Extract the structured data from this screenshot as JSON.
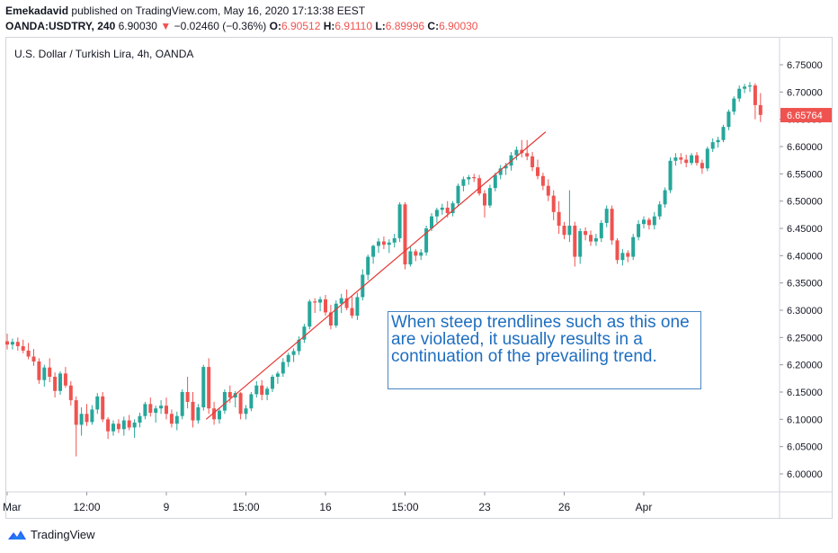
{
  "header": {
    "author": "Emekadavid",
    "published_text": "published on TradingView.com, May 16, 2020 17:13:38 EEST",
    "symbol": "OANDA:USDTRY, 240",
    "last": "6.90030",
    "change_arrow": "▼",
    "change": "−0.02460 (−0.36%)",
    "o_label": "O:",
    "o_value": "6.90512",
    "h_label": "H:",
    "h_value": "6.91110",
    "l_label": "L:",
    "l_value": "6.89996",
    "c_label": "C:",
    "c_value": "6.90030"
  },
  "chart_title": "U.S. Dollar / Turkish Lira, 4h, OANDA",
  "annotation": "When steep trendlines such as this one are violated, it usually results in a continuation of the prevailing trend.",
  "footer": {
    "brand": "TradingView"
  },
  "colors": {
    "up": "#26a69a",
    "down": "#ef5350",
    "trendline": "#e53935",
    "price_tag": "#ef5350",
    "annotation": "#1e6ec0"
  },
  "chart_data": {
    "type": "candlestick",
    "title": "U.S. Dollar / Turkish Lira, 4h, OANDA",
    "ylim": [
      5.96,
      6.8
    ],
    "y_ticks": [
      "6.75000",
      "6.70000",
      "6.65000",
      "6.60000",
      "6.55000",
      "6.50000",
      "6.45000",
      "6.40000",
      "6.35000",
      "6.30000",
      "6.25000",
      "6.20000",
      "6.15000",
      "6.10000",
      "6.05000",
      "6.00000"
    ],
    "y_tick_values": [
      6.75,
      6.7,
      6.65,
      6.6,
      6.55,
      6.5,
      6.45,
      6.4,
      6.35,
      6.3,
      6.25,
      6.2,
      6.15,
      6.1,
      6.05,
      6.0
    ],
    "current_price": 6.65764,
    "current_price_label": "6.65764",
    "x_labels": [
      {
        "text": "Mar",
        "bar": 0
      },
      {
        "text": "12:00",
        "bar": 15
      },
      {
        "text": "9",
        "bar": 30
      },
      {
        "text": "15:00",
        "bar": 45
      },
      {
        "text": "16",
        "bar": 60
      },
      {
        "text": "15:00",
        "bar": 75
      },
      {
        "text": "23",
        "bar": 90
      },
      {
        "text": "26",
        "bar": 105
      },
      {
        "text": "Apr",
        "bar": 120
      }
    ],
    "trendline": {
      "from_bar": 37.5,
      "from_price": 6.1,
      "to_bar": 101.5,
      "to_price": 6.627
    },
    "candles": [
      [
        6.243,
        6.257,
        6.228,
        6.237
      ],
      [
        6.237,
        6.248,
        6.228,
        6.242
      ],
      [
        6.242,
        6.25,
        6.226,
        6.234
      ],
      [
        6.234,
        6.246,
        6.221,
        6.226
      ],
      [
        6.226,
        6.24,
        6.21,
        6.215
      ],
      [
        6.215,
        6.229,
        6.198,
        6.206
      ],
      [
        6.206,
        6.212,
        6.165,
        6.172
      ],
      [
        6.172,
        6.2,
        6.16,
        6.195
      ],
      [
        6.195,
        6.212,
        6.168,
        6.178
      ],
      [
        6.178,
        6.186,
        6.14,
        6.152
      ],
      [
        6.152,
        6.188,
        6.145,
        6.184
      ],
      [
        6.184,
        6.196,
        6.158,
        6.162
      ],
      [
        6.162,
        6.17,
        6.125,
        6.135
      ],
      [
        6.135,
        6.142,
        6.032,
        6.09
      ],
      [
        6.09,
        6.122,
        6.07,
        6.11
      ],
      [
        6.11,
        6.128,
        6.088,
        6.095
      ],
      [
        6.095,
        6.126,
        6.09,
        6.118
      ],
      [
        6.118,
        6.148,
        6.11,
        6.142
      ],
      [
        6.142,
        6.15,
        6.095,
        6.1
      ],
      [
        6.1,
        6.104,
        6.064,
        6.078
      ],
      [
        6.078,
        6.098,
        6.07,
        6.092
      ],
      [
        6.092,
        6.1,
        6.075,
        6.082
      ],
      [
        6.082,
        6.105,
        6.07,
        6.098
      ],
      [
        6.098,
        6.108,
        6.08,
        6.085
      ],
      [
        6.085,
        6.1,
        6.066,
        6.094
      ],
      [
        6.094,
        6.112,
        6.085,
        6.106
      ],
      [
        6.106,
        6.132,
        6.1,
        6.128
      ],
      [
        6.128,
        6.14,
        6.105,
        6.112
      ],
      [
        6.112,
        6.125,
        6.094,
        6.12
      ],
      [
        6.12,
        6.135,
        6.11,
        6.125
      ],
      [
        6.125,
        6.14,
        6.1,
        6.11
      ],
      [
        6.11,
        6.118,
        6.085,
        6.092
      ],
      [
        6.092,
        6.114,
        6.08,
        6.106
      ],
      [
        6.106,
        6.155,
        6.1,
        6.15
      ],
      [
        6.15,
        6.178,
        6.12,
        6.132
      ],
      [
        6.132,
        6.15,
        6.085,
        6.098
      ],
      [
        6.098,
        6.128,
        6.092,
        6.122
      ],
      [
        6.122,
        6.2,
        6.116,
        6.196
      ],
      [
        6.196,
        6.212,
        6.11,
        6.12
      ],
      [
        6.12,
        6.132,
        6.09,
        6.1
      ],
      [
        6.1,
        6.12,
        6.092,
        6.116
      ],
      [
        6.116,
        6.155,
        6.11,
        6.15
      ],
      [
        6.15,
        6.162,
        6.13,
        6.14
      ],
      [
        6.14,
        6.152,
        6.122,
        6.148
      ],
      [
        6.148,
        6.15,
        6.1,
        6.11
      ],
      [
        6.11,
        6.126,
        6.1,
        6.12
      ],
      [
        6.12,
        6.15,
        6.115,
        6.146
      ],
      [
        6.146,
        6.17,
        6.14,
        6.162
      ],
      [
        6.162,
        6.172,
        6.135,
        6.145
      ],
      [
        6.145,
        6.16,
        6.135,
        6.156
      ],
      [
        6.156,
        6.182,
        6.15,
        6.178
      ],
      [
        6.178,
        6.188,
        6.165,
        6.184
      ],
      [
        6.184,
        6.212,
        6.178,
        6.205
      ],
      [
        6.205,
        6.222,
        6.196,
        6.218
      ],
      [
        6.218,
        6.23,
        6.205,
        6.225
      ],
      [
        6.225,
        6.252,
        6.218,
        6.246
      ],
      [
        6.246,
        6.275,
        6.24,
        6.27
      ],
      [
        6.27,
        6.32,
        6.265,
        6.316
      ],
      [
        6.316,
        6.322,
        6.295,
        6.314
      ],
      [
        6.314,
        6.325,
        6.298,
        6.32
      ],
      [
        6.32,
        6.328,
        6.29,
        6.296
      ],
      [
        6.296,
        6.31,
        6.265,
        6.272
      ],
      [
        6.272,
        6.318,
        6.268,
        6.312
      ],
      [
        6.312,
        6.33,
        6.295,
        6.322
      ],
      [
        6.322,
        6.338,
        6.3,
        6.304
      ],
      [
        6.304,
        6.325,
        6.285,
        6.29
      ],
      [
        6.29,
        6.332,
        6.282,
        6.324
      ],
      [
        6.324,
        6.375,
        6.318,
        6.365
      ],
      [
        6.365,
        6.402,
        6.355,
        6.398
      ],
      [
        6.398,
        6.42,
        6.385,
        6.418
      ],
      [
        6.418,
        6.432,
        6.405,
        6.426
      ],
      [
        6.426,
        6.435,
        6.412,
        6.42
      ],
      [
        6.42,
        6.43,
        6.405,
        6.424
      ],
      [
        6.424,
        6.44,
        6.415,
        6.432
      ],
      [
        6.432,
        6.498,
        6.425,
        6.494
      ],
      [
        6.494,
        6.498,
        6.375,
        6.384
      ],
      [
        6.384,
        6.416,
        6.38,
        6.408
      ],
      [
        6.408,
        6.412,
        6.39,
        6.4
      ],
      [
        6.4,
        6.412,
        6.392,
        6.406
      ],
      [
        6.406,
        6.455,
        6.4,
        6.45
      ],
      [
        6.45,
        6.478,
        6.445,
        6.472
      ],
      [
        6.472,
        6.488,
        6.46,
        6.484
      ],
      [
        6.484,
        6.495,
        6.475,
        6.488
      ],
      [
        6.488,
        6.5,
        6.47,
        6.478
      ],
      [
        6.478,
        6.5,
        6.472,
        6.496
      ],
      [
        6.496,
        6.532,
        6.49,
        6.528
      ],
      [
        6.528,
        6.545,
        6.518,
        6.54
      ],
      [
        6.54,
        6.548,
        6.53,
        6.544
      ],
      [
        6.544,
        6.55,
        6.535,
        6.542
      ],
      [
        6.542,
        6.548,
        6.51,
        6.514
      ],
      [
        6.514,
        6.52,
        6.47,
        6.492
      ],
      [
        6.492,
        6.53,
        6.488,
        6.524
      ],
      [
        6.524,
        6.552,
        6.518,
        6.548
      ],
      [
        6.548,
        6.566,
        6.54,
        6.56
      ],
      [
        6.56,
        6.57,
        6.548,
        6.565
      ],
      [
        6.565,
        6.59,
        6.556,
        6.584
      ],
      [
        6.584,
        6.6,
        6.575,
        6.594
      ],
      [
        6.594,
        6.612,
        6.58,
        6.588
      ],
      [
        6.588,
        6.612,
        6.575,
        6.582
      ],
      [
        6.582,
        6.59,
        6.555,
        6.562
      ],
      [
        6.562,
        6.576,
        6.54,
        6.546
      ],
      [
        6.546,
        6.552,
        6.52,
        6.528
      ],
      [
        6.528,
        6.54,
        6.5,
        6.51
      ],
      [
        6.51,
        6.52,
        6.465,
        6.48
      ],
      [
        6.48,
        6.5,
        6.44,
        6.455
      ],
      [
        6.455,
        6.462,
        6.43,
        6.438
      ],
      [
        6.438,
        6.52,
        6.425,
        6.455
      ],
      [
        6.455,
        6.462,
        6.38,
        6.398
      ],
      [
        6.398,
        6.45,
        6.385,
        6.445
      ],
      [
        6.445,
        6.452,
        6.428,
        6.438
      ],
      [
        6.438,
        6.446,
        6.418,
        6.426
      ],
      [
        6.426,
        6.44,
        6.418,
        6.432
      ],
      [
        6.432,
        6.465,
        6.425,
        6.46
      ],
      [
        6.46,
        6.492,
        6.452,
        6.486
      ],
      [
        6.486,
        6.492,
        6.42,
        6.428
      ],
      [
        6.428,
        6.432,
        6.385,
        6.392
      ],
      [
        6.392,
        6.412,
        6.382,
        6.405
      ],
      [
        6.405,
        6.41,
        6.388,
        6.398
      ],
      [
        6.398,
        6.44,
        6.392,
        6.434
      ],
      [
        6.434,
        6.465,
        6.428,
        6.458
      ],
      [
        6.458,
        6.472,
        6.45,
        6.466
      ],
      [
        6.466,
        6.47,
        6.448,
        6.456
      ],
      [
        6.456,
        6.48,
        6.448,
        6.472
      ],
      [
        6.472,
        6.5,
        6.466,
        6.494
      ],
      [
        6.494,
        6.525,
        6.488,
        6.52
      ],
      [
        6.52,
        6.58,
        6.515,
        6.574
      ],
      [
        6.574,
        6.588,
        6.565,
        6.58
      ],
      [
        6.58,
        6.588,
        6.568,
        6.576
      ],
      [
        6.576,
        6.585,
        6.562,
        6.57
      ],
      [
        6.57,
        6.588,
        6.566,
        6.584
      ],
      [
        6.584,
        6.59,
        6.565,
        6.57
      ],
      [
        6.57,
        6.576,
        6.55,
        6.56
      ],
      [
        6.56,
        6.6,
        6.555,
        6.596
      ],
      [
        6.596,
        6.615,
        6.59,
        6.608
      ],
      [
        6.608,
        6.618,
        6.598,
        6.612
      ],
      [
        6.612,
        6.64,
        6.608,
        6.636
      ],
      [
        6.636,
        6.668,
        6.63,
        6.664
      ],
      [
        6.664,
        6.692,
        6.658,
        6.688
      ],
      [
        6.688,
        6.712,
        6.682,
        6.706
      ],
      [
        6.706,
        6.715,
        6.698,
        6.71
      ],
      [
        6.71,
        6.718,
        6.7,
        6.712
      ],
      [
        6.712,
        6.716,
        6.65,
        6.676
      ],
      [
        6.676,
        6.698,
        6.645,
        6.658
      ]
    ]
  }
}
